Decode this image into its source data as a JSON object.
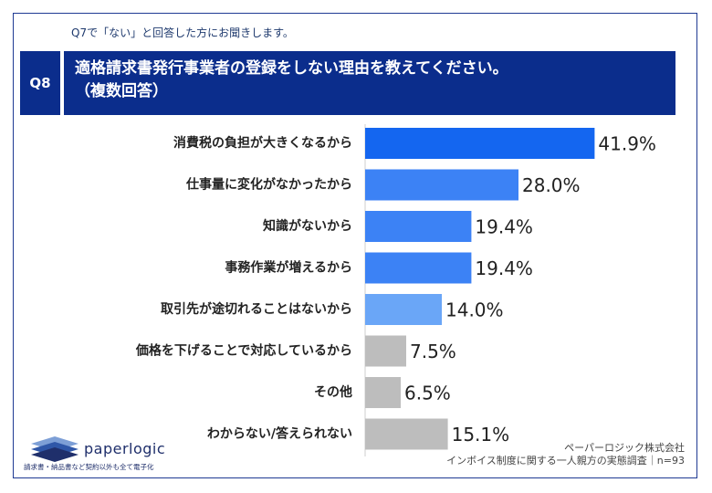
{
  "header": {
    "pretitle": "Q7で「ない」と回答した方にお聞きします。",
    "qlabel": "Q8",
    "question_line1": "適格請求書発行事業者の登録をしない理由を教えてください。",
    "question_line2": "（複数回答）"
  },
  "colors": {
    "header_bg": "#0b2d8c",
    "frame": "#1f3a93"
  },
  "chart_data": {
    "type": "bar",
    "orientation": "horizontal",
    "title": "",
    "xlabel": "",
    "ylabel": "",
    "xlim": [
      0,
      50
    ],
    "grid": false,
    "categories": [
      "消費税の負担が大きくなるから",
      "仕事量に変化がなかったから",
      "知識がないから",
      "事務作業が増えるから",
      "取引先が途切れることはないから",
      "価格を下げることで対応しているから",
      "その他",
      "わからない/答えられない"
    ],
    "values": [
      41.9,
      28.0,
      19.4,
      19.4,
      14.0,
      7.5,
      6.5,
      15.1
    ],
    "value_labels": [
      "41.9%",
      "28.0%",
      "19.4%",
      "19.4%",
      "14.0%",
      "7.5%",
      "6.5%",
      "15.1%"
    ],
    "bar_colors": [
      "#1466f0",
      "#3c82f5",
      "#3c82f5",
      "#3c82f5",
      "#6aa6f7",
      "#bdbdbd",
      "#bdbdbd",
      "#bdbdbd"
    ]
  },
  "logo": {
    "name": "paperlogic",
    "tagline": "請求書・納品書など契約以外も全て電子化"
  },
  "source": {
    "line1": "ペーパーロジック株式会社",
    "line2": "インボイス制度に関する一人親方の実態調査｜n=93"
  }
}
